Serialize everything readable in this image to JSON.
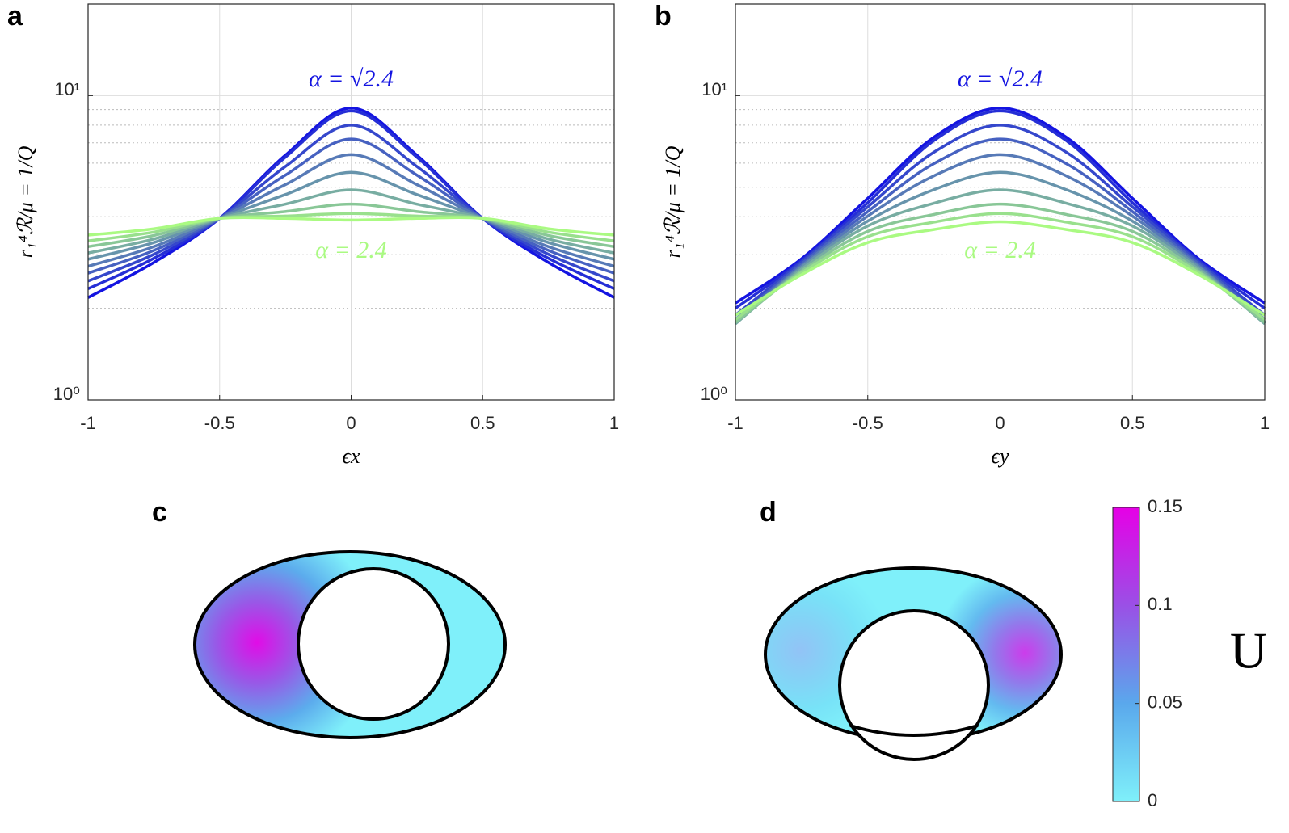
{
  "chart_data": [
    {
      "type": "line",
      "panel_label": "a",
      "ylabel": "r₁⁴ℛ/μ = 1/Q",
      "xlabel": "ϵx",
      "log_y": true,
      "grid": true,
      "xlim": [
        -1,
        1
      ],
      "xticks": [
        -1,
        -0.5,
        0,
        0.5,
        1
      ],
      "ylim": [
        1,
        20
      ],
      "yticks": [
        {
          "value": 1,
          "label": "10⁰"
        },
        {
          "value": 10,
          "label": "10¹"
        }
      ],
      "yminor": [
        2,
        3,
        4,
        5,
        6,
        7,
        8,
        9
      ],
      "annotations": [
        {
          "text": "α = √2.4"
        },
        {
          "text": "α = 2.4"
        }
      ],
      "x": [
        -1,
        -0.75,
        -0.5,
        -0.25,
        0,
        0.25,
        0.5,
        0.75,
        1
      ],
      "series": [
        {
          "color": "#1414e1",
          "values": [
            2.17,
            2.83,
            3.95,
            6.37,
            9.1,
            6.37,
            3.95,
            2.83,
            2.17
          ]
        },
        {
          "color": "#252ed6",
          "values": [
            2.32,
            2.92,
            3.95,
            6.28,
            8.9,
            6.28,
            3.95,
            2.92,
            2.32
          ]
        },
        {
          "color": "#3547cc",
          "values": [
            2.46,
            3.01,
            3.95,
            5.85,
            8.0,
            5.85,
            3.95,
            3.01,
            2.46
          ]
        },
        {
          "color": "#4661c1",
          "values": [
            2.61,
            3.1,
            3.95,
            5.48,
            7.2,
            5.48,
            3.95,
            3.1,
            2.61
          ]
        },
        {
          "color": "#577ab7",
          "values": [
            2.75,
            3.19,
            3.95,
            5.1,
            6.4,
            5.1,
            3.95,
            3.19,
            2.75
          ]
        },
        {
          "color": "#6794ac",
          "values": [
            2.9,
            3.29,
            3.95,
            4.73,
            5.6,
            4.73,
            3.95,
            3.29,
            2.9
          ]
        },
        {
          "color": "#78ada2",
          "values": [
            3.04,
            3.38,
            3.95,
            4.4,
            4.9,
            4.4,
            3.95,
            3.38,
            3.04
          ]
        },
        {
          "color": "#89c797",
          "values": [
            3.19,
            3.47,
            3.95,
            4.16,
            4.4,
            4.16,
            3.95,
            3.47,
            3.19
          ]
        },
        {
          "color": "#99e08d",
          "values": [
            3.33,
            3.56,
            3.95,
            4.02,
            4.1,
            4.02,
            3.95,
            3.56,
            3.33
          ]
        },
        {
          "color": "#aafa82",
          "values": [
            3.48,
            3.65,
            3.95,
            3.95,
            3.9,
            3.95,
            3.95,
            3.65,
            3.48
          ]
        }
      ]
    },
    {
      "type": "line",
      "panel_label": "b",
      "ylabel": "r₁⁴ℛ/μ = 1/Q",
      "xlabel": "ϵy",
      "log_y": true,
      "grid": true,
      "xlim": [
        -1,
        1
      ],
      "xticks": [
        -1,
        -0.5,
        0,
        0.5,
        1
      ],
      "ylim": [
        1,
        20
      ],
      "yticks": [
        {
          "value": 1,
          "label": "10⁰"
        },
        {
          "value": 10,
          "label": "10¹"
        }
      ],
      "yminor": [
        2,
        3,
        4,
        5,
        6,
        7,
        8,
        9
      ],
      "annotations": [
        {
          "text": "α = √2.4"
        },
        {
          "text": "α = 2.4"
        }
      ],
      "x": [
        -1,
        -0.75,
        -0.5,
        -0.25,
        0,
        0.25,
        0.5,
        0.75,
        1
      ],
      "series": [
        {
          "color": "#1414e1",
          "values": [
            2.08,
            2.91,
            4.6,
            7.3,
            9.1,
            7.3,
            4.6,
            2.91,
            2.08
          ]
        },
        {
          "color": "#252ed6",
          "values": [
            2.0,
            2.87,
            4.45,
            7.12,
            8.9,
            7.12,
            4.45,
            2.87,
            2.0
          ]
        },
        {
          "color": "#3547cc",
          "values": [
            1.9,
            2.84,
            4.31,
            6.52,
            8.0,
            6.52,
            4.31,
            2.84,
            1.9
          ]
        },
        {
          "color": "#4661c1",
          "values": [
            1.84,
            2.8,
            4.16,
            5.98,
            7.2,
            5.98,
            4.16,
            2.8,
            1.84
          ]
        },
        {
          "color": "#577ab7",
          "values": [
            1.8,
            2.76,
            4.02,
            5.45,
            6.4,
            5.45,
            4.02,
            2.76,
            1.8
          ]
        },
        {
          "color": "#6794ac",
          "values": [
            1.78,
            2.73,
            3.87,
            4.91,
            5.6,
            4.91,
            3.87,
            2.73,
            1.78
          ]
        },
        {
          "color": "#78ada2",
          "values": [
            1.78,
            2.69,
            3.73,
            4.43,
            4.9,
            4.43,
            3.73,
            2.69,
            1.78
          ]
        },
        {
          "color": "#89c797",
          "values": [
            1.8,
            2.65,
            3.58,
            4.07,
            4.4,
            4.07,
            3.58,
            2.65,
            1.8
          ]
        },
        {
          "color": "#99e08d",
          "values": [
            1.84,
            2.62,
            3.44,
            3.84,
            4.1,
            3.84,
            3.44,
            2.62,
            1.84
          ]
        },
        {
          "color": "#aafa82",
          "values": [
            1.9,
            2.58,
            3.29,
            3.63,
            3.85,
            3.63,
            3.29,
            2.58,
            1.9
          ]
        }
      ]
    },
    {
      "type": "heatmap",
      "panel_labels": [
        "c",
        "d"
      ],
      "colorbar_label": "U",
      "clim": [
        0,
        0.15
      ],
      "cticks": [
        0,
        0.05,
        0.1,
        0.15
      ],
      "colormap": [
        "#7ff0fa",
        "#5aa8ec",
        "#9a50e6",
        "#e600e6"
      ]
    }
  ]
}
